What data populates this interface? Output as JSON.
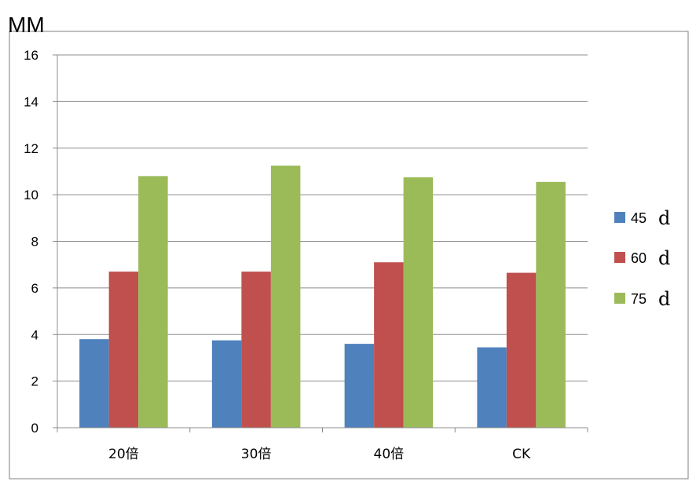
{
  "chart_data": {
    "type": "bar",
    "ylabel": "MM",
    "xlabel": "",
    "ylim": [
      0,
      16
    ],
    "yticks": [
      "0",
      "2",
      "4",
      "6",
      "8",
      "10",
      "12",
      "14",
      "16"
    ],
    "categories": [
      "20倍",
      "30倍",
      "40倍",
      "CK"
    ],
    "grid": true,
    "legend_position": "right",
    "series": [
      {
        "name": "45",
        "unit": "d",
        "color": "#4F81BD",
        "values": [
          3.8,
          3.75,
          3.6,
          3.45
        ]
      },
      {
        "name": "60",
        "unit": "d",
        "color": "#C0504D",
        "values": [
          6.7,
          6.7,
          7.1,
          6.65
        ]
      },
      {
        "name": "75",
        "unit": "d",
        "color": "#9BBB59",
        "values": [
          10.8,
          11.25,
          10.75,
          10.55
        ]
      }
    ]
  }
}
